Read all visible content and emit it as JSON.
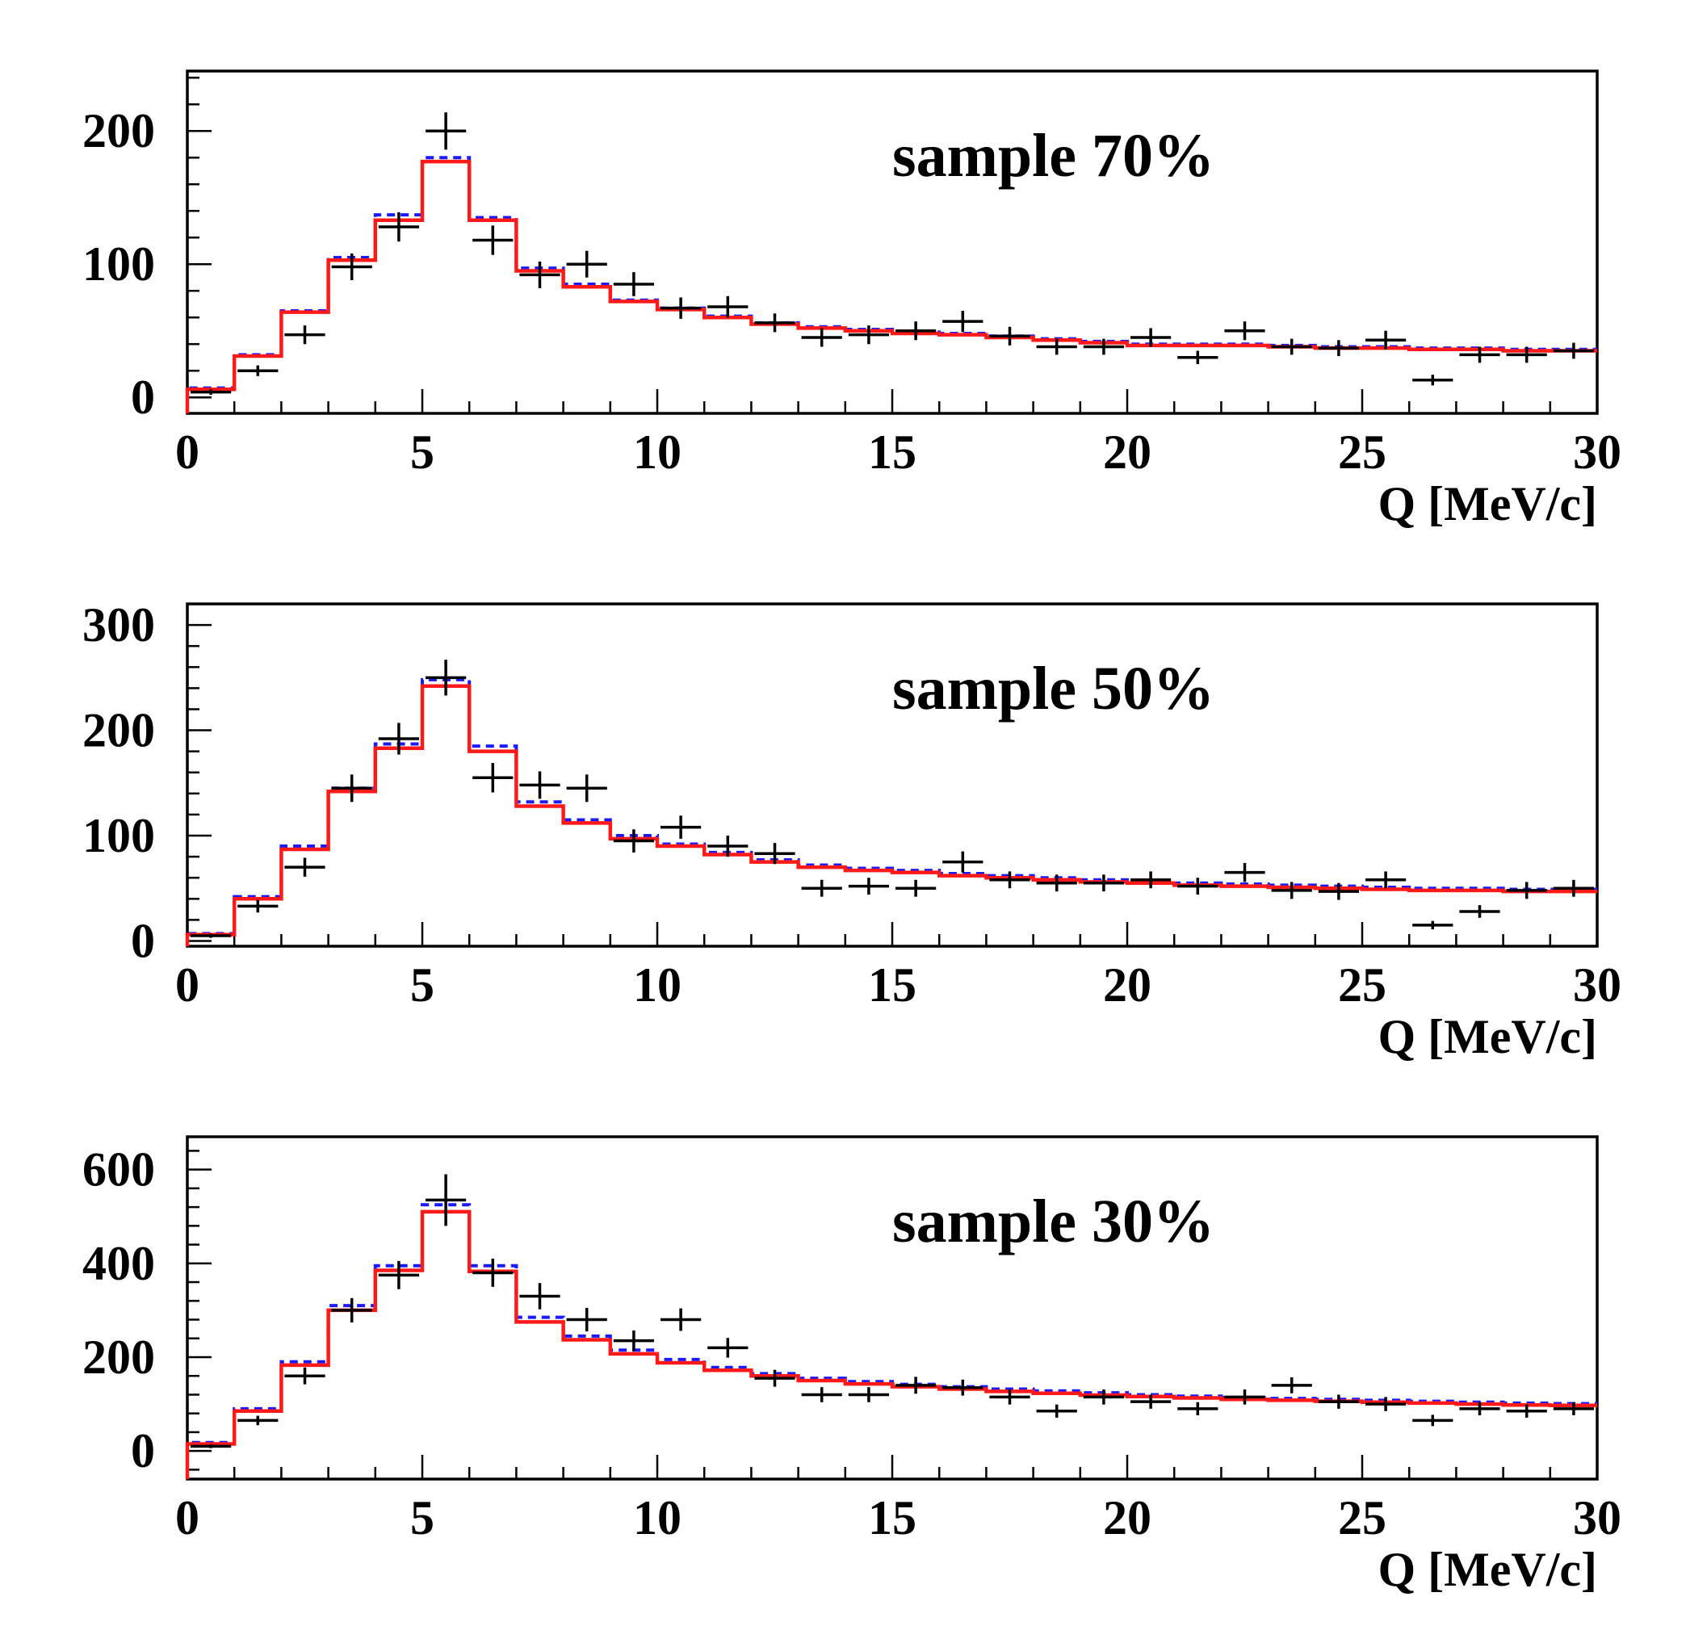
{
  "chart_data": [
    {
      "type": "histogram",
      "title": "sample 70%",
      "xlabel": "Q [MeV/c]",
      "ylabel": "",
      "xlim": [
        0,
        30
      ],
      "ylim": [
        -12,
        245
      ],
      "xticks": [
        0,
        5,
        10,
        15,
        20,
        25,
        30
      ],
      "yticks": [
        0,
        100,
        200
      ],
      "bin_edges": [
        0,
        1,
        2,
        3,
        4,
        5,
        6,
        7,
        8,
        9,
        10,
        11,
        12,
        13,
        14,
        15,
        16,
        17,
        18,
        19,
        20,
        21,
        22,
        23,
        24,
        25,
        26,
        27,
        28,
        29,
        30
      ],
      "series": [
        {
          "name": "data",
          "style": "points",
          "color": "#000000",
          "x": [
            0.5,
            1.5,
            2.5,
            3.5,
            4.5,
            5.5,
            6.5,
            7.5,
            8.5,
            9.5,
            10.5,
            11.5,
            12.5,
            13.5,
            14.5,
            15.5,
            16.5,
            17.5,
            18.5,
            19.5,
            20.5,
            21.5,
            22.5,
            23.5,
            24.5,
            25.5,
            26.5,
            27.5,
            28.5,
            29.5
          ],
          "values": [
            4,
            20,
            47,
            98,
            128,
            200,
            118,
            92,
            100,
            85,
            67,
            68,
            56,
            45,
            47,
            50,
            57,
            46,
            38,
            38,
            45,
            30,
            50,
            38,
            37,
            43,
            13,
            32,
            32,
            35
          ],
          "errors": [
            2,
            4,
            7,
            10,
            11,
            14,
            11,
            10,
            10,
            9,
            8,
            8,
            7,
            7,
            7,
            7,
            8,
            7,
            6,
            6,
            7,
            5,
            7,
            6,
            6,
            7,
            4,
            6,
            6,
            6
          ]
        },
        {
          "name": "fit (blue dashed)",
          "style": "step-dashed",
          "color": "#1a1aff",
          "values": [
            7,
            32,
            65,
            105,
            137,
            180,
            135,
            97,
            85,
            73,
            67,
            61,
            56,
            53,
            51,
            49,
            48,
            46,
            44,
            42,
            40,
            40,
            40,
            39,
            38,
            38,
            37,
            37,
            36,
            36
          ]
        },
        {
          "name": "fit (red)",
          "style": "step",
          "color": "#ff1a1a",
          "values": [
            6,
            31,
            64,
            103,
            133,
            177,
            133,
            95,
            83,
            72,
            66,
            60,
            55,
            52,
            50,
            48,
            47,
            45,
            43,
            41,
            39,
            39,
            39,
            38,
            37,
            37,
            36,
            36,
            35,
            35
          ]
        }
      ]
    },
    {
      "type": "histogram",
      "title": "sample 50%",
      "xlabel": "Q [MeV/c]",
      "ylabel": "",
      "xlim": [
        0,
        30
      ],
      "ylim": [
        -5,
        320
      ],
      "xticks": [
        0,
        5,
        10,
        15,
        20,
        25,
        30
      ],
      "yticks": [
        0,
        100,
        200,
        300
      ],
      "bin_edges": [
        0,
        1,
        2,
        3,
        4,
        5,
        6,
        7,
        8,
        9,
        10,
        11,
        12,
        13,
        14,
        15,
        16,
        17,
        18,
        19,
        20,
        21,
        22,
        23,
        24,
        25,
        26,
        27,
        28,
        29,
        30
      ],
      "series": [
        {
          "name": "data",
          "style": "points",
          "color": "#000000",
          "x": [
            0.5,
            1.5,
            2.5,
            3.5,
            4.5,
            5.5,
            6.5,
            7.5,
            8.5,
            9.5,
            10.5,
            11.5,
            12.5,
            13.5,
            14.5,
            15.5,
            16.5,
            17.5,
            18.5,
            19.5,
            20.5,
            21.5,
            22.5,
            23.5,
            24.5,
            25.5,
            26.5,
            27.5,
            28.5,
            29.5
          ],
          "values": [
            5,
            33,
            70,
            145,
            192,
            250,
            155,
            148,
            145,
            95,
            108,
            90,
            83,
            50,
            52,
            50,
            75,
            58,
            55,
            55,
            58,
            52,
            65,
            48,
            47,
            58,
            15,
            28,
            48,
            50
          ],
          "errors": [
            2,
            6,
            9,
            13,
            15,
            17,
            14,
            13,
            13,
            11,
            11,
            10,
            10,
            8,
            8,
            8,
            10,
            8,
            8,
            8,
            8,
            8,
            9,
            8,
            8,
            8,
            4,
            6,
            8,
            8
          ]
        },
        {
          "name": "fit (blue dashed)",
          "style": "step-dashed",
          "color": "#1a1aff",
          "values": [
            7,
            42,
            90,
            145,
            187,
            248,
            185,
            132,
            115,
            100,
            92,
            84,
            77,
            72,
            69,
            67,
            64,
            62,
            60,
            58,
            57,
            55,
            54,
            53,
            52,
            51,
            50,
            50,
            49,
            49
          ]
        },
        {
          "name": "fit (red)",
          "style": "step",
          "color": "#ff1a1a",
          "values": [
            6,
            40,
            87,
            142,
            183,
            242,
            180,
            128,
            112,
            97,
            90,
            82,
            75,
            70,
            67,
            65,
            62,
            60,
            58,
            56,
            55,
            53,
            52,
            51,
            50,
            49,
            48,
            48,
            47,
            47
          ]
        }
      ]
    },
    {
      "type": "histogram",
      "title": "sample 30%",
      "xlabel": "Q [MeV/c]",
      "ylabel": "",
      "xlim": [
        0,
        30
      ],
      "ylim": [
        -60,
        670
      ],
      "xticks": [
        0,
        5,
        10,
        15,
        20,
        25,
        30
      ],
      "yticks": [
        0,
        200,
        400,
        600
      ],
      "bin_edges": [
        0,
        1,
        2,
        3,
        4,
        5,
        6,
        7,
        8,
        9,
        10,
        11,
        12,
        13,
        14,
        15,
        16,
        17,
        18,
        19,
        20,
        21,
        22,
        23,
        24,
        25,
        26,
        27,
        28,
        29,
        30
      ],
      "series": [
        {
          "name": "data",
          "style": "points",
          "color": "#000000",
          "x": [
            0.5,
            1.5,
            2.5,
            3.5,
            4.5,
            5.5,
            6.5,
            7.5,
            8.5,
            9.5,
            10.5,
            11.5,
            12.5,
            13.5,
            14.5,
            15.5,
            16.5,
            17.5,
            18.5,
            19.5,
            20.5,
            21.5,
            22.5,
            23.5,
            24.5,
            25.5,
            26.5,
            27.5,
            28.5,
            29.5
          ],
          "values": [
            10,
            65,
            160,
            300,
            375,
            535,
            380,
            330,
            280,
            235,
            280,
            220,
            155,
            120,
            120,
            140,
            135,
            115,
            85,
            115,
            105,
            90,
            115,
            140,
            105,
            100,
            65,
            90,
            85,
            90
          ],
          "errors": [
            4,
            10,
            18,
            26,
            30,
            55,
            30,
            28,
            25,
            22,
            24,
            21,
            18,
            16,
            16,
            18,
            17,
            16,
            14,
            16,
            15,
            14,
            16,
            17,
            15,
            15,
            12,
            14,
            14,
            14
          ]
        },
        {
          "name": "fit (blue dashed)",
          "style": "step-dashed",
          "color": "#1a1aff",
          "values": [
            18,
            90,
            190,
            310,
            395,
            525,
            395,
            285,
            245,
            215,
            195,
            178,
            165,
            155,
            148,
            142,
            137,
            132,
            128,
            124,
            120,
            117,
            114,
            112,
            110,
            108,
            106,
            104,
            102,
            101
          ]
        },
        {
          "name": "fit (red)",
          "style": "step",
          "color": "#ff1a1a",
          "values": [
            15,
            85,
            183,
            300,
            385,
            510,
            383,
            275,
            237,
            207,
            188,
            172,
            160,
            150,
            143,
            137,
            132,
            127,
            123,
            119,
            116,
            113,
            110,
            108,
            106,
            104,
            102,
            100,
            98,
            97
          ]
        }
      ]
    }
  ]
}
